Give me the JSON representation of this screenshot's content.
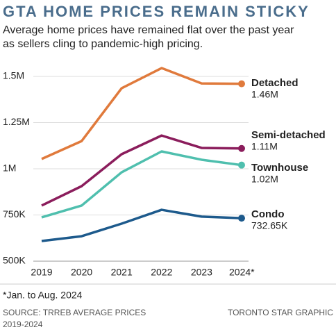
{
  "chart_data": {
    "type": "line",
    "title": "GTA HOME PRICES REMAIN STICKY",
    "subtitle": [
      "Average home prices have remained flat over the past year",
      "as sellers cling to pandemic-high pricing."
    ],
    "categories": [
      "2019",
      "2020",
      "2021",
      "2022",
      "2023",
      "2024*"
    ],
    "series": [
      {
        "name": "Detached",
        "color": "#e07a3c",
        "values": [
          1053000,
          1150000,
          1436000,
          1545000,
          1462000,
          1460000
        ],
        "value_labels": [
          null,
          null,
          null,
          null,
          null,
          "1.46M"
        ]
      },
      {
        "name": "Semi-detached",
        "color": "#8b1d5c",
        "values": [
          801000,
          906000,
          1079000,
          1180000,
          1113000,
          1110000
        ],
        "value_labels": [
          null,
          null,
          null,
          null,
          null,
          "1.11M"
        ]
      },
      {
        "name": "Townhouse",
        "color": "#4fbfae",
        "values": [
          737000,
          801000,
          981000,
          1094000,
          1049000,
          1020000
        ],
        "value_labels": [
          null,
          null,
          null,
          null,
          null,
          "1.02M"
        ]
      },
      {
        "name": "Condo",
        "color": "#1d5a8c",
        "values": [
          609000,
          635000,
          703000,
          778000,
          741000,
          732650
        ],
        "value_labels": [
          null,
          null,
          null,
          null,
          null,
          "732.65K"
        ]
      }
    ],
    "ylim": [
      500000,
      1500000
    ],
    "yticks": [
      {
        "value": 500000,
        "label": "500K"
      },
      {
        "value": 750000,
        "label": "750K"
      },
      {
        "value": 1000000,
        "label": "1M"
      },
      {
        "value": 1250000,
        "label": "1.25M"
      },
      {
        "value": 1500000,
        "label": "1.5M"
      }
    ],
    "grid": true,
    "footnote": "*Jan. to Aug. 2024",
    "source": [
      "SOURCE: TRREB AVERAGE PRICES",
      "2019-2024"
    ],
    "credit": "TORONTO STAR GRAPHIC"
  }
}
